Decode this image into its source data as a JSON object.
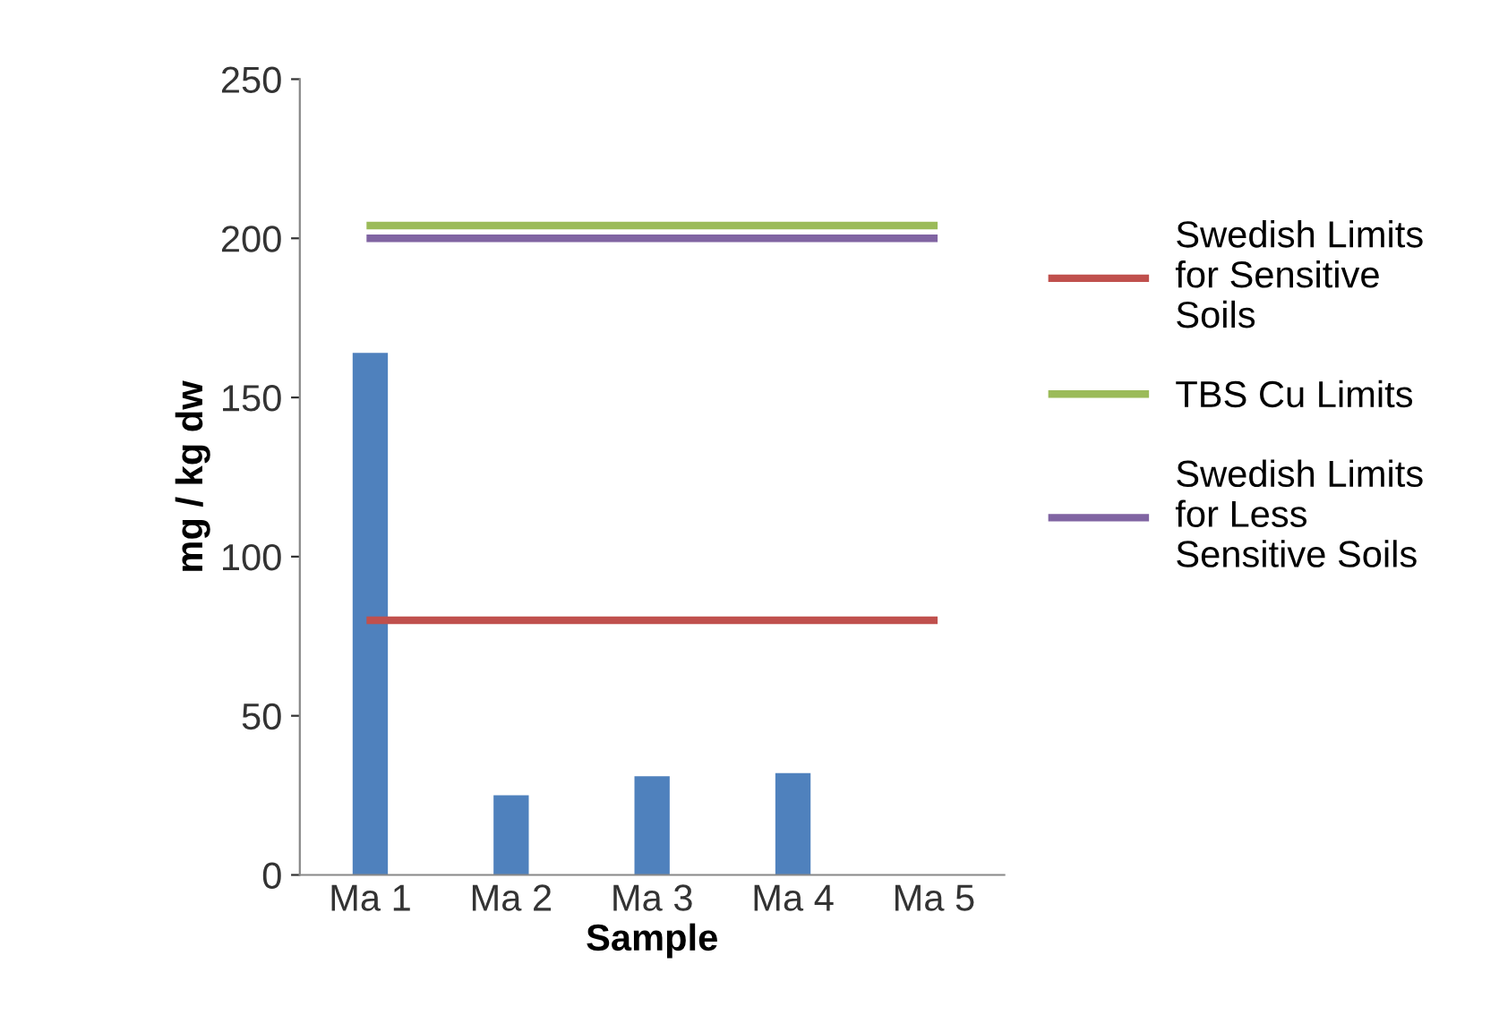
{
  "chart_data": {
    "type": "bar",
    "xlabel": "Sample",
    "ylabel": "mg / kg dw",
    "categories": [
      "Ma 1",
      "Ma 2",
      "Ma 3",
      "Ma 4",
      "Ma 5"
    ],
    "series": [
      {
        "color": "#4f81bd",
        "values": [
          164,
          25,
          31,
          32,
          0
        ]
      },
      {
        "type": "line",
        "name": "Swedish Limits for Sensitive Soils",
        "color": "#c0504d",
        "values": [
          80,
          80,
          80,
          80,
          80
        ]
      },
      {
        "type": "line",
        "name": "TBS Cu Limits",
        "color": "#9bbb59",
        "values": [
          204,
          204,
          204,
          204,
          204
        ]
      },
      {
        "type": "line",
        "name": "Swedish Limits for Less Sensitive Soils",
        "color": "#8064a2",
        "values": [
          200,
          200,
          200,
          200,
          200
        ]
      }
    ],
    "ylim": [
      0,
      250
    ],
    "yticks": [
      0,
      50,
      100,
      150,
      200,
      250
    ],
    "grid": false,
    "legend": "right",
    "marker": "none",
    "line_style": "solid"
  }
}
